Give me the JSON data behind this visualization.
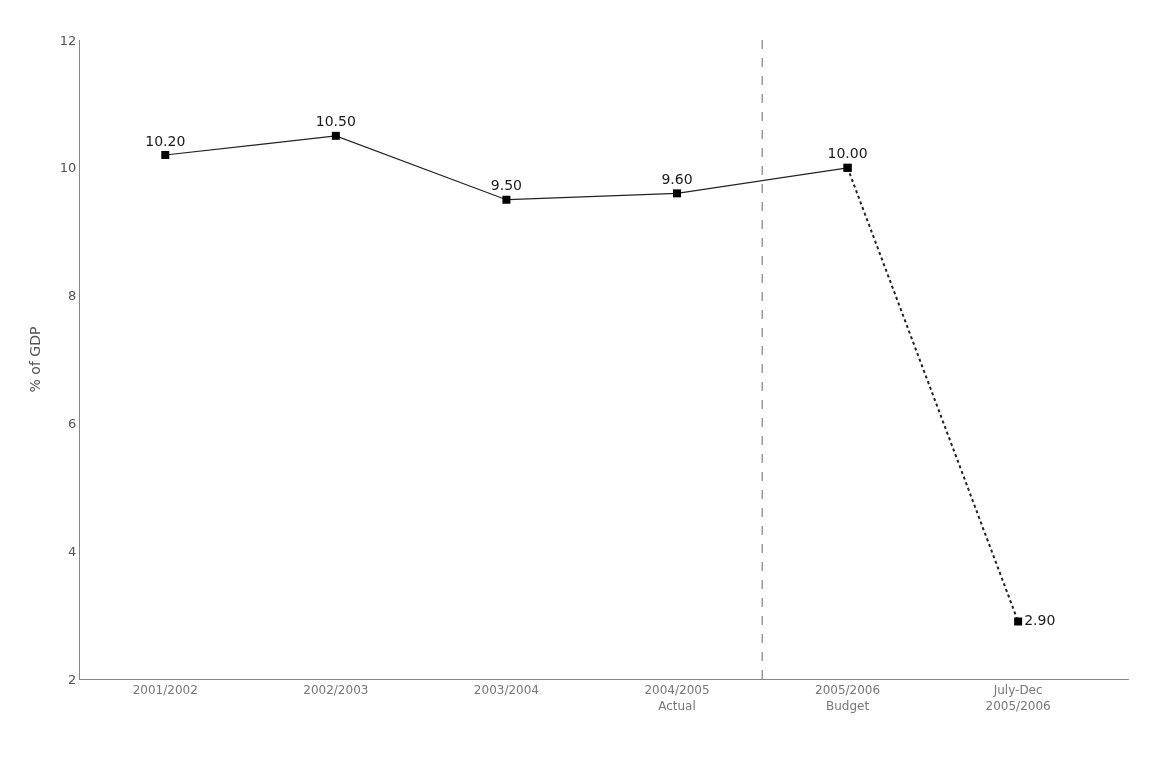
{
  "chart_data": {
    "type": "line",
    "ylabel": "% of GDP",
    "categories": [
      "2001/2002",
      "2002/2003",
      "2003/2004",
      "2004/2005\nActual",
      "2005/2006\nBudget",
      "July-Dec\n2005/2006"
    ],
    "series": [
      {
        "color": "#222222",
        "line_style": "solid",
        "values": [
          10.2,
          10.5,
          9.5,
          9.6,
          10.0,
          null
        ],
        "value_labels": [
          "10.20",
          "10.50",
          "9.50",
          "9.60",
          "10.00",
          null
        ]
      },
      {
        "color": "#222222",
        "line_style": "dotted",
        "values": [
          null,
          null,
          null,
          null,
          10.0,
          2.9
        ],
        "value_labels": [
          null,
          null,
          null,
          null,
          null,
          "2.90"
        ]
      }
    ],
    "ylim": [
      2,
      12
    ],
    "yticks": [
      2,
      4,
      6,
      8,
      10,
      12
    ],
    "marker": "square"
  }
}
